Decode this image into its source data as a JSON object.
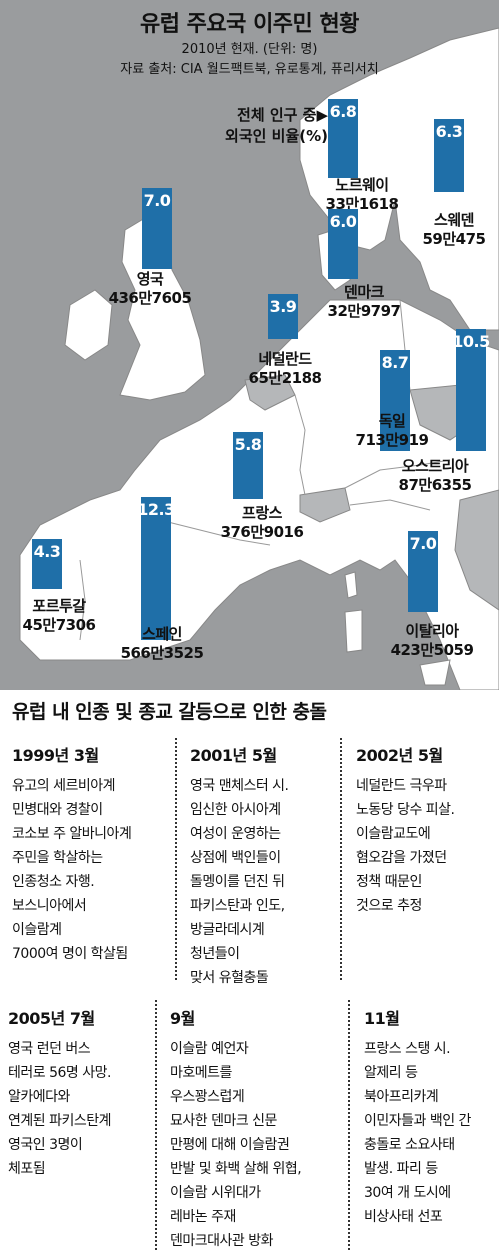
{
  "header": {
    "title": "유럽 주요국 이주민 현황",
    "subtitle": "2010년 현재. (단위: 명)",
    "source": "자료 출처: CIA 월드팩트북, 유로통계, 퓨리서치"
  },
  "legend": {
    "line1": "전체 인구 중▶",
    "line2": "외국인 비율(%)"
  },
  "colors": {
    "bar": "#1f6fa8",
    "land": "#ffffff",
    "sea": "#9a9c9e"
  },
  "chart_data": {
    "type": "bar",
    "title": "유럽 주요국 이주민 현황",
    "ylabel": "외국인 비율(%)",
    "categories": [
      "노르웨이",
      "스웨덴",
      "영국",
      "덴마크",
      "네덜란드",
      "독일",
      "오스트리아",
      "프랑스",
      "스페인",
      "이탈리아",
      "포르투갈"
    ],
    "values": [
      6.8,
      6.3,
      7.0,
      6.0,
      3.9,
      8.7,
      10.5,
      5.8,
      12.3,
      7.0,
      4.3
    ],
    "value_labels": [
      "6.8",
      "6.3",
      "7.0",
      "6.0",
      "3.9",
      "8.7",
      "10.5",
      "5.8",
      "12.3",
      "7.0",
      "4.3"
    ],
    "immigrants": [
      "33만1618",
      "59만475",
      "436만7605",
      "32만9797",
      "65만2188",
      "713만919",
      "87만6355",
      "376만9016",
      "566만3525",
      "423만5059",
      "45만7306"
    ]
  },
  "events": {
    "title": "유럽 내 인종 및 종교 갈등으로 인한 충돌",
    "items": [
      {
        "date": "1999년 3월",
        "lines": [
          "유고의 세르비아계",
          "민병대와 경찰이",
          "코소보 주 알바니아계",
          "주민을 학살하는",
          "인종청소 자행.",
          "보스니아에서",
          "이슬람계",
          "7000여 명이 학살됨"
        ]
      },
      {
        "date": "2001년 5월",
        "lines": [
          "영국 맨체스터 시.",
          "임신한 아시아계",
          "여성이 운영하는",
          "상점에 백인들이",
          "돌멩이를 던진 뒤",
          "파키스탄과 인도,",
          "방글라데시계",
          "청년들이",
          "맞서 유혈충돌"
        ]
      },
      {
        "date": "2002년 5월",
        "lines": [
          "네덜란드 극우파",
          "노동당 당수 피살.",
          "이슬람교도에",
          "혐오감을 가졌던",
          "정책 때문인",
          "것으로 추정"
        ]
      },
      {
        "date": "2005년 7월",
        "lines": [
          "영국 런던 버스",
          "테러로 56명 사망.",
          "알카에다와",
          "연계된 파키스탄계",
          "영국인 3명이",
          "체포됨"
        ]
      },
      {
        "date": "9월",
        "lines": [
          "이슬람 예언자",
          "마호메트를",
          "우스꽝스럽게",
          "묘사한 덴마크 신문",
          "만평에 대해 이슬람권",
          "반발 및 화백 살해 위협,",
          "이슬람 시위대가",
          "레바논 주재",
          "덴마크대사관 방화"
        ]
      },
      {
        "date": "11월",
        "lines": [
          "프랑스 스탱 시.",
          "알제리 등",
          "북아프리카계",
          "이민자들과 백인 간",
          "충돌로 소요사태",
          "발생. 파리 등",
          "30여 개 도시에",
          "비상사태 선포"
        ]
      }
    ]
  }
}
